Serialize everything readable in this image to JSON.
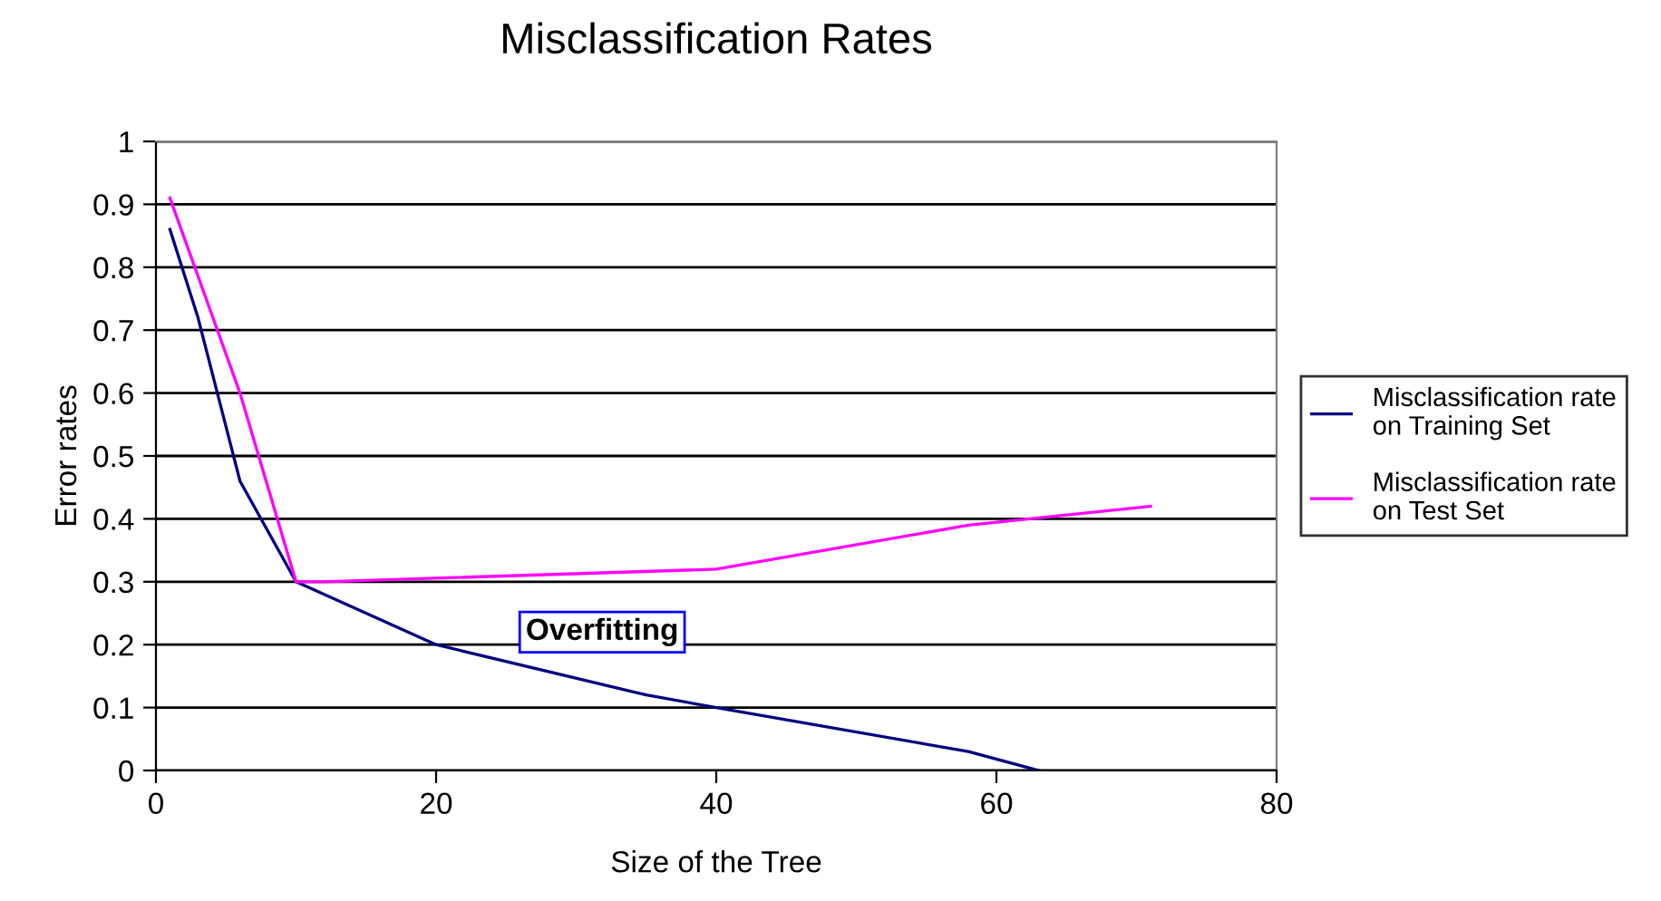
{
  "chart_data": {
    "type": "line",
    "title": "Misclassification Rates",
    "xlabel": "Size of the Tree",
    "ylabel": "Error rates",
    "xlim": [
      0,
      80
    ],
    "xticks": [
      0,
      20,
      40,
      60,
      80
    ],
    "ylim": [
      0,
      1
    ],
    "yticks": [
      0,
      0.1,
      0.2,
      0.3,
      0.4,
      0.5,
      0.6,
      0.7,
      0.8,
      0.9,
      1
    ],
    "grid": "y",
    "legend": "right",
    "marker": "none",
    "line_style": "solid",
    "annotations": [
      "Overfitting"
    ],
    "series": [
      {
        "name": "Misclassification rate\non Training Set",
        "color": "#000080",
        "x": [
          1,
          3,
          6,
          10,
          20,
          35,
          40,
          58,
          63
        ],
        "values": [
          0.86,
          0.72,
          0.46,
          0.3,
          0.2,
          0.12,
          0.1,
          0.03,
          0.0
        ]
      },
      {
        "name": "Misclassification rate\non Test Set",
        "color": "#ff00ff",
        "x": [
          1,
          6,
          10,
          12,
          40,
          58,
          71
        ],
        "values": [
          0.91,
          0.6,
          0.3,
          0.3,
          0.32,
          0.39,
          0.42
        ]
      }
    ]
  }
}
